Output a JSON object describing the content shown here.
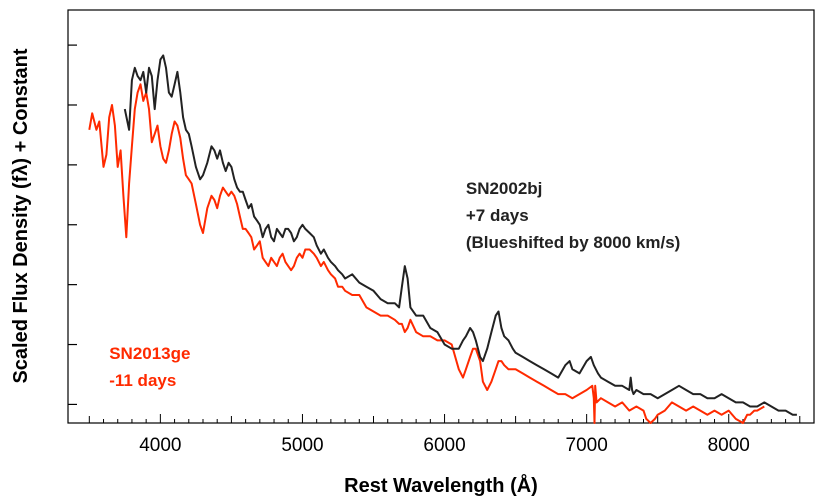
{
  "chart_data": {
    "type": "line",
    "title": "",
    "xlabel": "Rest Wavelength (Å)",
    "ylabel": "Scaled Flux Density (fλ) + Constant",
    "xlim": [
      3350,
      8600
    ],
    "ylim": [
      0,
      1
    ],
    "x_ticks": [
      4000,
      5000,
      6000,
      7000,
      8000
    ],
    "y_ticks": [
      0.045,
      0.19,
      0.335,
      0.48,
      0.625,
      0.77,
      0.915
    ],
    "grid": false,
    "legend": "none",
    "annotations": [
      {
        "id": "sn2002bj",
        "color": "#222222",
        "lines": [
          "SN2002bj",
          "+7 days",
          "(Blueshifted by 8000 km/s)"
        ],
        "at": [
          6150,
          0.555
        ]
      },
      {
        "id": "sn2013ge",
        "color": "#ff2a00",
        "lines": [
          "SN2013ge",
          "-11 days"
        ],
        "at": [
          3640,
          0.155
        ]
      }
    ],
    "series": [
      {
        "name": "SN2002bj",
        "color": "#222222",
        "x": [
          3750,
          3780,
          3800,
          3820,
          3840,
          3860,
          3880,
          3900,
          3920,
          3940,
          3960,
          3980,
          4000,
          4020,
          4040,
          4060,
          4080,
          4100,
          4120,
          4140,
          4160,
          4180,
          4200,
          4220,
          4250,
          4280,
          4300,
          4330,
          4360,
          4380,
          4400,
          4420,
          4440,
          4460,
          4480,
          4500,
          4520,
          4540,
          4560,
          4580,
          4600,
          4620,
          4640,
          4660,
          4680,
          4700,
          4720,
          4740,
          4760,
          4780,
          4800,
          4820,
          4840,
          4860,
          4880,
          4900,
          4920,
          4940,
          4960,
          4980,
          5000,
          5020,
          5050,
          5080,
          5100,
          5130,
          5150,
          5180,
          5200,
          5230,
          5250,
          5280,
          5300,
          5350,
          5400,
          5450,
          5500,
          5550,
          5600,
          5650,
          5680,
          5700,
          5720,
          5740,
          5760,
          5800,
          5850,
          5900,
          5950,
          6000,
          6050,
          6100,
          6130,
          6150,
          6180,
          6200,
          6220,
          6250,
          6270,
          6300,
          6330,
          6360,
          6380,
          6400,
          6420,
          6450,
          6480,
          6500,
          6550,
          6600,
          6650,
          6700,
          6750,
          6800,
          6850,
          6880,
          6900,
          6950,
          7000,
          7030,
          7050,
          7080,
          7100,
          7150,
          7200,
          7250,
          7300,
          7310,
          7320,
          7330,
          7350,
          7400,
          7450,
          7500,
          7550,
          7600,
          7650,
          7700,
          7750,
          7800,
          7850,
          7900,
          7950,
          8000,
          8050,
          8100,
          8150,
          8200,
          8250,
          8300,
          8350,
          8400,
          8450,
          8480
        ],
        "y": [
          0.76,
          0.71,
          0.83,
          0.86,
          0.84,
          0.83,
          0.85,
          0.8,
          0.86,
          0.84,
          0.76,
          0.83,
          0.88,
          0.89,
          0.86,
          0.8,
          0.79,
          0.82,
          0.85,
          0.8,
          0.74,
          0.71,
          0.7,
          0.67,
          0.62,
          0.59,
          0.6,
          0.63,
          0.67,
          0.66,
          0.64,
          0.66,
          0.63,
          0.61,
          0.63,
          0.62,
          0.59,
          0.57,
          0.56,
          0.56,
          0.54,
          0.52,
          0.53,
          0.5,
          0.49,
          0.48,
          0.45,
          0.47,
          0.48,
          0.45,
          0.44,
          0.47,
          0.46,
          0.45,
          0.47,
          0.47,
          0.46,
          0.44,
          0.45,
          0.47,
          0.48,
          0.47,
          0.46,
          0.45,
          0.43,
          0.41,
          0.42,
          0.4,
          0.39,
          0.38,
          0.37,
          0.36,
          0.35,
          0.36,
          0.34,
          0.33,
          0.32,
          0.3,
          0.29,
          0.29,
          0.28,
          0.33,
          0.38,
          0.35,
          0.28,
          0.26,
          0.26,
          0.23,
          0.22,
          0.19,
          0.18,
          0.18,
          0.2,
          0.21,
          0.23,
          0.22,
          0.2,
          0.16,
          0.15,
          0.18,
          0.22,
          0.26,
          0.27,
          0.23,
          0.21,
          0.2,
          0.18,
          0.17,
          0.16,
          0.15,
          0.14,
          0.13,
          0.12,
          0.11,
          0.14,
          0.15,
          0.13,
          0.12,
          0.15,
          0.16,
          0.14,
          0.12,
          0.11,
          0.1,
          0.09,
          0.09,
          0.08,
          0.11,
          0.08,
          0.07,
          0.08,
          0.07,
          0.07,
          0.06,
          0.07,
          0.08,
          0.09,
          0.08,
          0.07,
          0.07,
          0.06,
          0.06,
          0.07,
          0.06,
          0.05,
          0.05,
          0.04,
          0.04,
          0.05,
          0.04,
          0.03,
          0.03,
          0.02,
          0.02
        ]
      },
      {
        "name": "SN2013ge",
        "color": "#ff2a00",
        "x": [
          3500,
          3520,
          3550,
          3570,
          3600,
          3620,
          3640,
          3660,
          3680,
          3700,
          3720,
          3740,
          3760,
          3780,
          3800,
          3820,
          3840,
          3860,
          3880,
          3900,
          3920,
          3940,
          3960,
          3980,
          4000,
          4020,
          4040,
          4060,
          4080,
          4100,
          4120,
          4140,
          4160,
          4180,
          4200,
          4220,
          4250,
          4280,
          4300,
          4330,
          4360,
          4380,
          4400,
          4420,
          4440,
          4460,
          4480,
          4500,
          4520,
          4540,
          4560,
          4580,
          4600,
          4620,
          4640,
          4660,
          4680,
          4700,
          4720,
          4740,
          4760,
          4780,
          4800,
          4820,
          4840,
          4860,
          4880,
          4900,
          4920,
          4940,
          4960,
          4980,
          5000,
          5020,
          5050,
          5080,
          5100,
          5130,
          5150,
          5180,
          5200,
          5230,
          5250,
          5280,
          5300,
          5350,
          5400,
          5450,
          5500,
          5550,
          5600,
          5650,
          5680,
          5700,
          5720,
          5740,
          5760,
          5800,
          5850,
          5900,
          5950,
          6000,
          6050,
          6100,
          6130,
          6150,
          6180,
          6200,
          6220,
          6250,
          6270,
          6300,
          6330,
          6360,
          6380,
          6400,
          6420,
          6450,
          6500,
          6550,
          6600,
          6650,
          6700,
          6750,
          6800,
          6850,
          6900,
          6950,
          7000,
          7040,
          7050,
          7055,
          7060,
          7065,
          7070,
          7100,
          7150,
          7200,
          7250,
          7300,
          7350,
          7400,
          7420,
          7450,
          7480,
          7500,
          7550,
          7600,
          7650,
          7700,
          7750,
          7800,
          7850,
          7900,
          7950,
          8000,
          8050,
          8100,
          8130,
          8150,
          8180,
          8200,
          8250
        ],
        "y": [
          0.71,
          0.75,
          0.71,
          0.73,
          0.62,
          0.65,
          0.74,
          0.77,
          0.72,
          0.62,
          0.66,
          0.55,
          0.45,
          0.58,
          0.67,
          0.76,
          0.8,
          0.82,
          0.78,
          0.8,
          0.76,
          0.68,
          0.7,
          0.72,
          0.67,
          0.64,
          0.63,
          0.66,
          0.7,
          0.73,
          0.72,
          0.69,
          0.64,
          0.6,
          0.59,
          0.58,
          0.53,
          0.48,
          0.46,
          0.52,
          0.55,
          0.54,
          0.52,
          0.55,
          0.57,
          0.56,
          0.55,
          0.56,
          0.55,
          0.53,
          0.5,
          0.47,
          0.47,
          0.46,
          0.45,
          0.42,
          0.43,
          0.44,
          0.4,
          0.39,
          0.38,
          0.4,
          0.39,
          0.38,
          0.4,
          0.41,
          0.39,
          0.38,
          0.37,
          0.38,
          0.4,
          0.41,
          0.4,
          0.42,
          0.42,
          0.41,
          0.4,
          0.38,
          0.39,
          0.37,
          0.36,
          0.35,
          0.33,
          0.33,
          0.32,
          0.31,
          0.31,
          0.28,
          0.27,
          0.26,
          0.26,
          0.25,
          0.24,
          0.24,
          0.22,
          0.23,
          0.25,
          0.22,
          0.21,
          0.21,
          0.2,
          0.2,
          0.19,
          0.13,
          0.11,
          0.13,
          0.16,
          0.18,
          0.18,
          0.15,
          0.1,
          0.08,
          0.1,
          0.13,
          0.15,
          0.15,
          0.14,
          0.13,
          0.13,
          0.12,
          0.11,
          0.1,
          0.09,
          0.08,
          0.07,
          0.07,
          0.06,
          0.07,
          0.08,
          0.09,
          0.06,
          0.0,
          0.09,
          0.07,
          0.05,
          0.06,
          0.05,
          0.04,
          0.05,
          0.03,
          0.04,
          0.03,
          0.01,
          0.0,
          0.01,
          0.02,
          0.03,
          0.05,
          0.04,
          0.03,
          0.04,
          0.03,
          0.02,
          0.03,
          0.02,
          0.03,
          0.01,
          0.0,
          0.02,
          0.02,
          0.03,
          0.03,
          0.04
        ]
      }
    ]
  }
}
